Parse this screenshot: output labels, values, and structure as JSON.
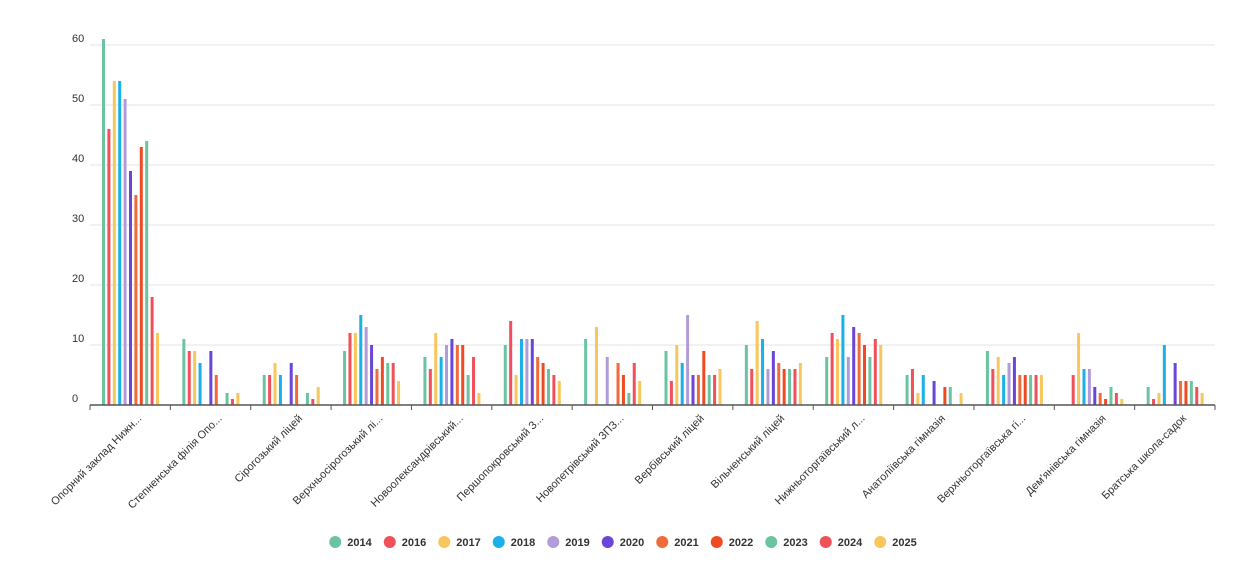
{
  "chart_data": {
    "type": "bar",
    "title": "",
    "xlabel": "",
    "ylabel": "",
    "ylim": [
      0,
      60
    ],
    "yticks": [
      0,
      10,
      20,
      30,
      40,
      50,
      60
    ],
    "grid": true,
    "legend_position": "bottom",
    "categories": [
      "Опорний заклад Нижн...",
      "Степненська філія Опо...",
      "Сірогозький ліцей",
      "Верхньосірогозький лі...",
      "Новоолександрівський...",
      "Першопокровський З...",
      "Новопетрівський ЗПЗ...",
      "Вербівський ліцей",
      "Вільненський ліцей",
      "Нижньоторгаївський л...",
      "Анатоліївська гімназія",
      "Верхньоторгаївська гі...",
      "Дем'янівська гімназія",
      "Братська школа-садок"
    ],
    "series": [
      {
        "name": "2014",
        "color": "#6cc3a0",
        "values": [
          61,
          11,
          5,
          9,
          8,
          10,
          11,
          9,
          10,
          8,
          5,
          9,
          0,
          3
        ]
      },
      {
        "name": "2016",
        "color": "#f0505a",
        "values": [
          46,
          9,
          5,
          12,
          6,
          14,
          0,
          4,
          6,
          12,
          6,
          6,
          5,
          1
        ]
      },
      {
        "name": "2017",
        "color": "#f7c65c",
        "values": [
          54,
          9,
          7,
          12,
          12,
          5,
          13,
          10,
          14,
          11,
          2,
          8,
          12,
          2
        ]
      },
      {
        "name": "2018",
        "color": "#1ab0e8",
        "values": [
          54,
          7,
          5,
          15,
          8,
          11,
          0,
          7,
          11,
          15,
          5,
          5,
          6,
          10
        ]
      },
      {
        "name": "2019",
        "color": "#b19cd9",
        "values": [
          51,
          0,
          0,
          13,
          10,
          11,
          8,
          15,
          6,
          8,
          0,
          7,
          6,
          0
        ]
      },
      {
        "name": "2020",
        "color": "#6a45d8",
        "values": [
          39,
          9,
          7,
          10,
          11,
          11,
          0,
          5,
          9,
          13,
          4,
          8,
          3,
          7
        ]
      },
      {
        "name": "2021",
        "color": "#f06a3a",
        "values": [
          35,
          5,
          5,
          6,
          10,
          8,
          7,
          5,
          7,
          12,
          0,
          5,
          2,
          4
        ]
      },
      {
        "name": "2022",
        "color": "#f04a25",
        "values": [
          43,
          0,
          0,
          8,
          10,
          7,
          5,
          9,
          6,
          10,
          3,
          5,
          1,
          4
        ]
      },
      {
        "name": "2023",
        "color": "#6cc3a0",
        "values": [
          44,
          2,
          2,
          7,
          5,
          6,
          2,
          5,
          6,
          8,
          3,
          5,
          3,
          4
        ]
      },
      {
        "name": "2024",
        "color": "#f0505a",
        "values": [
          18,
          1,
          1,
          7,
          8,
          5,
          7,
          5,
          6,
          11,
          0,
          5,
          2,
          3
        ]
      },
      {
        "name": "2025",
        "color": "#f7c65c",
        "values": [
          12,
          2,
          3,
          4,
          2,
          4,
          4,
          6,
          7,
          10,
          2,
          5,
          1,
          2
        ]
      }
    ]
  }
}
